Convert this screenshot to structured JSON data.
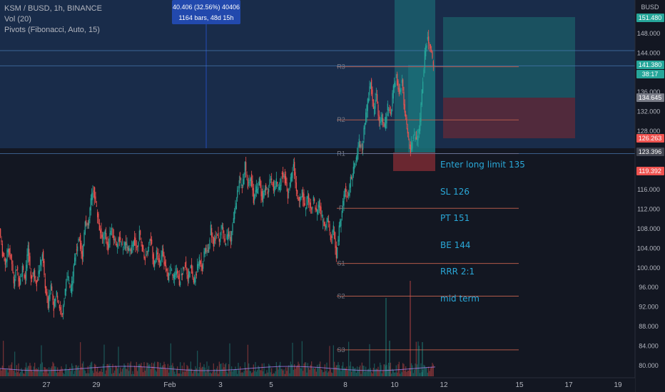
{
  "legend": {
    "title": "KSM / BUSD, 1h, BINANCE",
    "vol": "Vol (20)",
    "pivots": "Pivots (Fibonacci, Auto, 15)"
  },
  "measure": {
    "line1": "40.406 (32.56%) 40406",
    "line2": "1164 bars, 48d 15h"
  },
  "note_lines": [
    "Enter long limit 135",
    "SL 126",
    "PT 151",
    "BE 144",
    "RRR 2:1",
    "mid term"
  ],
  "colors": {
    "background": "#131722",
    "up": "#26a69a",
    "down": "#ef5350",
    "pivot_line": "#b25a4a",
    "blue_zone": "#1e3a66",
    "target_zone": "#1b5e68",
    "stop_zone": "#5c2a3a",
    "note": "#2aa8d8"
  },
  "chart_data": {
    "type": "candlestick",
    "symbol": "KSM / BUSD",
    "interval": "1h",
    "exchange": "BINANCE",
    "y_axis_label": "BUSD",
    "ylim": [
      77,
      153
    ],
    "y_ticks": [
      80,
      84,
      88,
      92,
      96,
      100,
      104,
      108,
      112,
      116,
      128,
      132,
      136,
      140,
      144,
      148
    ],
    "x_ticks": [
      "27",
      "29",
      "Feb",
      "3",
      "5",
      "8",
      "10",
      "12",
      "15",
      "17",
      "19"
    ],
    "x_tick_positions_index": [
      0,
      2,
      5,
      7,
      9,
      12,
      14,
      16,
      19,
      21,
      23
    ],
    "price_tags": [
      {
        "value": "151.480",
        "color": "#26a69a"
      },
      {
        "value": "141.380",
        "color": "#26a69a"
      },
      {
        "value": "38:17",
        "color": "#26a69a"
      },
      {
        "value": "134.645",
        "color": "#787b86"
      },
      {
        "value": "126.263",
        "color": "#ef5350"
      },
      {
        "value": "123.396",
        "color": "#434651"
      },
      {
        "value": "119.392",
        "color": "#ef5350"
      }
    ],
    "pivots": [
      {
        "label": "R3",
        "value": 141.2
      },
      {
        "label": "R2",
        "value": 130.3
      },
      {
        "label": "R1",
        "value": 123.4
      },
      {
        "label": "P",
        "value": 112.2
      },
      {
        "label": "S1",
        "value": 100.9
      },
      {
        "label": "S2",
        "value": 94.2
      },
      {
        "label": "S3",
        "value": 83.2
      }
    ],
    "horizontal_lines": [
      141.38,
      123.396,
      144.5
    ],
    "price_path": [
      [
        0,
        108
      ],
      [
        4,
        103
      ],
      [
        8,
        101
      ],
      [
        12,
        104
      ],
      [
        16,
        102
      ],
      [
        20,
        97
      ],
      [
        24,
        100
      ],
      [
        28,
        97
      ],
      [
        32,
        100
      ],
      [
        36,
        98
      ],
      [
        40,
        104
      ],
      [
        44,
        98
      ],
      [
        48,
        99
      ],
      [
        52,
        97
      ],
      [
        56,
        100
      ],
      [
        60,
        103
      ],
      [
        64,
        96
      ],
      [
        68,
        92
      ],
      [
        72,
        97
      ],
      [
        76,
        92
      ],
      [
        80,
        95
      ],
      [
        84,
        92
      ],
      [
        88,
        90
      ],
      [
        92,
        96
      ],
      [
        96,
        98
      ],
      [
        100,
        95
      ],
      [
        104,
        101
      ],
      [
        108,
        104
      ],
      [
        112,
        106
      ],
      [
        116,
        102
      ],
      [
        120,
        110
      ],
      [
        124,
        108
      ],
      [
        128,
        114
      ],
      [
        132,
        116
      ],
      [
        136,
        112
      ],
      [
        140,
        108
      ],
      [
        144,
        106
      ],
      [
        148,
        107
      ],
      [
        152,
        104
      ],
      [
        156,
        108
      ],
      [
        160,
        106
      ],
      [
        164,
        105
      ],
      [
        168,
        106
      ],
      [
        172,
        104
      ],
      [
        176,
        105
      ],
      [
        180,
        104
      ],
      [
        184,
        103
      ],
      [
        188,
        106
      ],
      [
        192,
        104
      ],
      [
        196,
        107
      ],
      [
        200,
        104
      ],
      [
        204,
        102
      ],
      [
        208,
        104
      ],
      [
        212,
        106
      ],
      [
        216,
        101
      ],
      [
        220,
        103
      ],
      [
        224,
        101
      ],
      [
        228,
        104
      ],
      [
        232,
        100
      ],
      [
        236,
        98
      ],
      [
        240,
        100
      ],
      [
        244,
        98
      ],
      [
        248,
        100
      ],
      [
        252,
        97
      ],
      [
        256,
        99
      ],
      [
        260,
        101
      ],
      [
        264,
        98
      ],
      [
        268,
        100
      ],
      [
        272,
        97
      ],
      [
        276,
        99
      ],
      [
        280,
        102
      ],
      [
        284,
        100
      ],
      [
        288,
        104
      ],
      [
        292,
        103
      ],
      [
        296,
        108
      ],
      [
        300,
        105
      ],
      [
        304,
        107
      ],
      [
        308,
        106
      ],
      [
        312,
        108
      ],
      [
        316,
        105
      ],
      [
        320,
        107
      ],
      [
        324,
        106
      ],
      [
        328,
        110
      ],
      [
        332,
        114
      ],
      [
        336,
        118
      ],
      [
        340,
        116
      ],
      [
        344,
        121
      ],
      [
        348,
        117
      ],
      [
        352,
        119
      ],
      [
        356,
        114
      ],
      [
        360,
        116
      ],
      [
        364,
        118
      ],
      [
        368,
        114
      ],
      [
        372,
        117
      ],
      [
        376,
        115
      ],
      [
        380,
        119
      ],
      [
        384,
        116
      ],
      [
        388,
        118
      ],
      [
        392,
        116
      ],
      [
        396,
        120
      ],
      [
        400,
        118
      ],
      [
        404,
        115
      ],
      [
        408,
        118
      ],
      [
        412,
        121
      ],
      [
        416,
        116
      ],
      [
        420,
        113
      ],
      [
        424,
        116
      ],
      [
        428,
        112
      ],
      [
        432,
        115
      ],
      [
        436,
        112
      ],
      [
        440,
        114
      ],
      [
        444,
        111
      ],
      [
        448,
        113
      ],
      [
        452,
        110
      ],
      [
        456,
        108
      ],
      [
        460,
        110
      ],
      [
        464,
        106
      ],
      [
        468,
        108
      ],
      [
        472,
        102
      ],
      [
        476,
        108
      ],
      [
        480,
        112
      ],
      [
        484,
        116
      ],
      [
        488,
        114
      ],
      [
        492,
        118
      ],
      [
        496,
        120
      ],
      [
        500,
        122
      ],
      [
        504,
        126
      ],
      [
        508,
        124
      ],
      [
        512,
        130
      ],
      [
        516,
        134
      ],
      [
        520,
        138
      ],
      [
        524,
        132
      ],
      [
        528,
        136
      ],
      [
        532,
        130
      ],
      [
        536,
        131
      ],
      [
        540,
        129
      ],
      [
        544,
        133
      ],
      [
        548,
        131
      ],
      [
        552,
        137
      ],
      [
        556,
        139
      ],
      [
        560,
        136
      ],
      [
        564,
        138
      ],
      [
        568,
        132
      ],
      [
        572,
        127
      ],
      [
        576,
        124
      ],
      [
        580,
        127
      ],
      [
        584,
        126
      ],
      [
        588,
        128
      ],
      [
        592,
        136
      ],
      [
        596,
        144
      ],
      [
        600,
        147
      ],
      [
        604,
        145
      ],
      [
        608,
        142
      ]
    ]
  }
}
